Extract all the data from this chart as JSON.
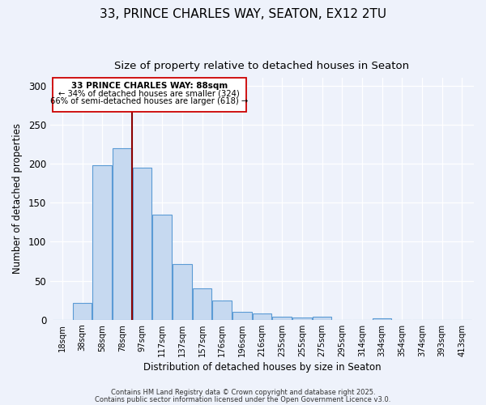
{
  "title": "33, PRINCE CHARLES WAY, SEATON, EX12 2TU",
  "subtitle": "Size of property relative to detached houses in Seaton",
  "xlabel": "Distribution of detached houses by size in Seaton",
  "ylabel": "Number of detached properties",
  "bar_labels": [
    "18sqm",
    "38sqm",
    "58sqm",
    "78sqm",
    "97sqm",
    "117sqm",
    "137sqm",
    "157sqm",
    "176sqm",
    "196sqm",
    "216sqm",
    "235sqm",
    "255sqm",
    "275sqm",
    "295sqm",
    "314sqm",
    "334sqm",
    "354sqm",
    "374sqm",
    "393sqm",
    "413sqm"
  ],
  "bar_values": [
    0,
    22,
    198,
    220,
    195,
    135,
    71,
    40,
    25,
    10,
    8,
    4,
    3,
    4,
    0,
    0,
    2,
    0,
    0,
    0,
    0
  ],
  "bar_color": "#c6d9f0",
  "bar_edge_color": "#5b9bd5",
  "vline_x_index": 4,
  "vline_color": "#8b0000",
  "ylim": [
    0,
    310
  ],
  "yticks": [
    0,
    50,
    100,
    150,
    200,
    250,
    300
  ],
  "annotation_title": "33 PRINCE CHARLES WAY: 88sqm",
  "annotation_line1": "← 34% of detached houses are smaller (324)",
  "annotation_line2": "66% of semi-detached houses are larger (618) →",
  "footnote1": "Contains HM Land Registry data © Crown copyright and database right 2025.",
  "footnote2": "Contains public sector information licensed under the Open Government Licence v3.0.",
  "bg_color": "#eef2fb",
  "title_fontsize": 11,
  "subtitle_fontsize": 9.5
}
